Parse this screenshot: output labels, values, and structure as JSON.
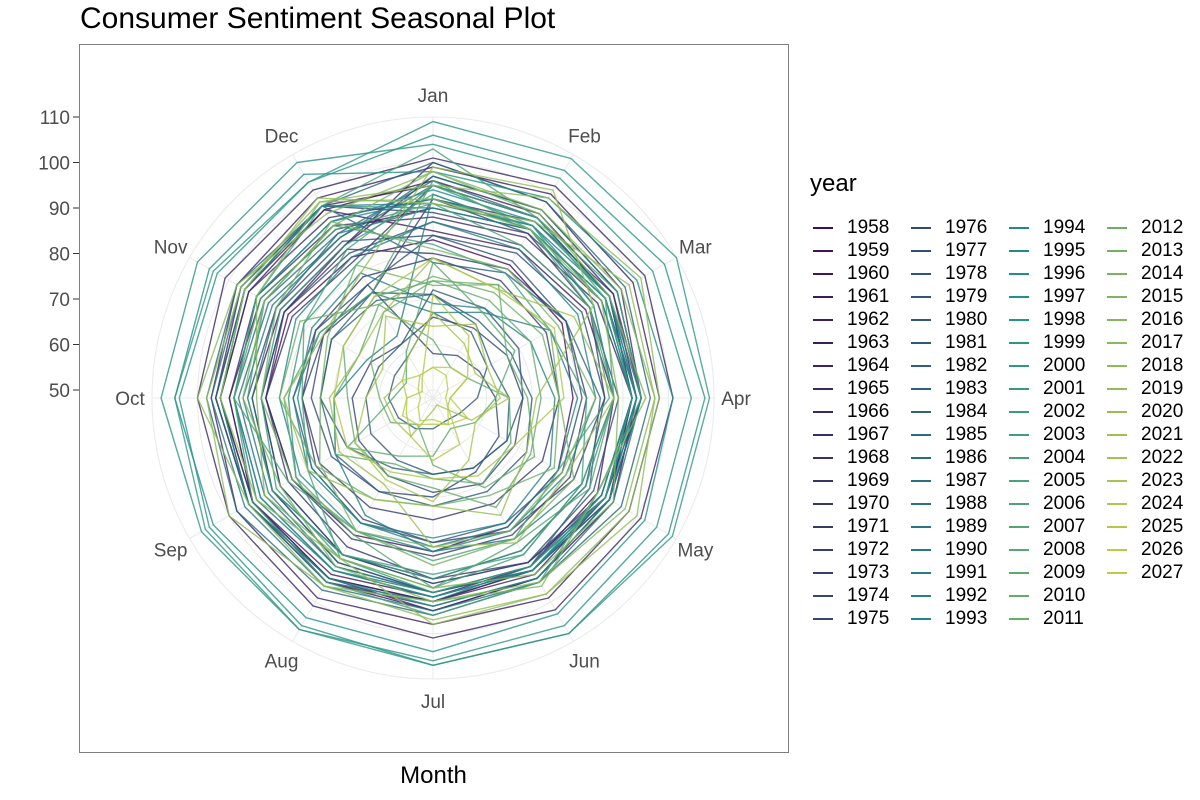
{
  "chart_data": {
    "type": "line",
    "projection": "polar",
    "title": "Consumer Sentiment Seasonal Plot",
    "xlabel": "Month",
    "ylabel": "",
    "categories": [
      "Jan",
      "Feb",
      "Mar",
      "Apr",
      "May",
      "Jun",
      "Jul",
      "Aug",
      "Sep",
      "Oct",
      "Nov",
      "Dec"
    ],
    "radial_ticks": [
      50,
      60,
      70,
      80,
      90,
      100,
      110
    ],
    "ylim": [
      45,
      115
    ],
    "grid": true,
    "legend": {
      "title": "year",
      "position": "right",
      "columns": 4
    },
    "colors": {
      "palette_start": "#440154",
      "palette_mid": "#21918c",
      "palette_end": "#fde725",
      "grid": "#ebebeb",
      "panel_border": "#7f7f7f",
      "tick_text": "#4d4d4d"
    },
    "series": [
      {
        "name": "1958",
        "values": [
          83,
          82,
          81,
          79,
          80,
          81,
          82,
          83,
          84,
          85,
          85,
          84
        ]
      },
      {
        "name": "1959",
        "values": [
          90,
          91,
          92,
          93,
          94,
          94,
          95,
          95,
          94,
          93,
          92,
          91
        ]
      },
      {
        "name": "1960",
        "values": [
          97,
          96,
          95,
          94,
          93,
          92,
          91,
          90,
          89,
          88,
          87,
          87
        ]
      },
      {
        "name": "1961",
        "values": [
          85,
          86,
          87,
          88,
          90,
          91,
          92,
          93,
          94,
          95,
          95,
          96
        ]
      },
      {
        "name": "1962",
        "values": [
          96,
          95,
          94,
          93,
          92,
          92,
          93,
          94,
          95,
          95,
          96,
          96
        ]
      },
      {
        "name": "1963",
        "values": [
          95,
          94,
          93,
          92,
          92,
          93,
          93,
          94,
          95,
          96,
          97,
          97
        ]
      },
      {
        "name": "1964",
        "values": [
          99,
          100,
          99,
          98,
          98,
          99,
          98,
          99,
          98,
          97,
          98,
          99
        ]
      },
      {
        "name": "1965",
        "values": [
          101,
          102,
          102,
          101,
          101,
          102,
          101,
          101,
          100,
          100,
          101,
          101
        ]
      },
      {
        "name": "1966",
        "values": [
          100,
          98,
          96,
          94,
          92,
          90,
          89,
          88,
          87,
          86,
          86,
          87
        ]
      },
      {
        "name": "1967",
        "values": [
          88,
          89,
          90,
          92,
          93,
          94,
          95,
          94,
          94,
          93,
          93,
          92
        ]
      },
      {
        "name": "1968",
        "values": [
          92,
          93,
          94,
          94,
          93,
          92,
          93,
          94,
          94,
          95,
          95,
          94
        ]
      },
      {
        "name": "1969",
        "values": [
          95,
          94,
          93,
          92,
          91,
          90,
          88,
          86,
          85,
          85,
          84,
          83
        ]
      },
      {
        "name": "1970",
        "values": [
          79,
          78,
          77,
          76,
          76,
          75,
          75,
          76,
          77,
          77,
          78,
          79
        ]
      },
      {
        "name": "1971",
        "values": [
          80,
          81,
          82,
          82,
          83,
          83,
          83,
          84,
          84,
          85,
          86,
          86
        ]
      },
      {
        "name": "1972",
        "values": [
          89,
          90,
          91,
          92,
          93,
          94,
          94,
          95,
          95,
          96,
          96,
          97
        ]
      },
      {
        "name": "1973",
        "values": [
          92,
          90,
          88,
          86,
          84,
          82,
          80,
          79,
          78,
          77,
          76,
          75
        ]
      },
      {
        "name": "1974",
        "values": [
          66,
          66,
          67,
          68,
          69,
          70,
          69,
          68,
          67,
          66,
          64,
          62
        ]
      },
      {
        "name": "1975",
        "values": [
          58,
          59,
          60,
          62,
          65,
          67,
          70,
          72,
          74,
          75,
          76,
          77
        ]
      },
      {
        "name": "1976",
        "values": [
          84,
          85,
          86,
          86,
          87,
          87,
          88,
          88,
          89,
          89,
          88,
          88
        ]
      },
      {
        "name": "1977",
        "values": [
          87,
          87,
          88,
          89,
          89,
          90,
          89,
          88,
          87,
          86,
          86,
          85
        ]
      },
      {
        "name": "1978",
        "values": [
          84,
          83,
          82,
          81,
          81,
          80,
          80,
          80,
          79,
          79,
          78,
          77
        ]
      },
      {
        "name": "1979",
        "values": [
          72,
          71,
          70,
          68,
          67,
          66,
          65,
          64,
          64,
          63,
          62,
          62
        ]
      },
      {
        "name": "1980",
        "values": [
          67,
          65,
          62,
          58,
          55,
          54,
          55,
          56,
          57,
          58,
          58,
          59
        ]
      },
      {
        "name": "1981",
        "values": [
          71,
          68,
          68,
          70,
          72,
          72,
          72,
          72,
          73,
          73,
          74,
          73
        ]
      },
      {
        "name": "1982",
        "values": [
          71,
          67,
          63,
          65,
          67,
          66,
          65,
          66,
          70,
          73,
          74,
          75
        ]
      },
      {
        "name": "1983",
        "values": [
          78,
          80,
          82,
          85,
          88,
          91,
          93,
          95,
          95,
          96,
          96,
          97
        ]
      },
      {
        "name": "1984",
        "values": [
          100,
          98,
          97,
          96,
          96,
          95,
          96,
          97,
          98,
          98,
          98,
          97
        ]
      },
      {
        "name": "1985",
        "values": [
          96,
          94,
          93,
          92,
          91,
          91,
          91,
          90,
          89,
          88,
          88,
          90
        ]
      },
      {
        "name": "1986",
        "values": [
          95,
          94,
          93,
          93,
          92,
          92,
          91,
          91,
          91,
          91,
          90,
          89
        ]
      },
      {
        "name": "1987",
        "values": [
          90,
          91,
          92,
          92,
          92,
          91,
          91,
          92,
          93,
          92,
          91,
          90
        ]
      },
      {
        "name": "1988",
        "values": [
          91,
          92,
          93,
          94,
          94,
          95,
          95,
          96,
          96,
          97,
          97,
          97
        ]
      },
      {
        "name": "1989",
        "values": [
          97,
          96,
          95,
          94,
          93,
          92,
          91,
          91,
          90,
          90,
          89,
          89
        ]
      },
      {
        "name": "1990",
        "values": [
          93,
          91,
          89,
          88,
          86,
          84,
          82,
          78,
          73,
          70,
          65,
          64
        ]
      },
      {
        "name": "1991",
        "values": [
          67,
          70,
          78,
          80,
          80,
          81,
          81,
          80,
          80,
          79,
          77,
          75
        ]
      },
      {
        "name": "1992",
        "values": [
          69,
          71,
          73,
          75,
          78,
          80,
          79,
          80,
          79,
          78,
          79,
          80
        ]
      },
      {
        "name": "1993",
        "values": [
          87,
          86,
          85,
          84,
          82,
          82,
          82,
          82,
          82,
          82,
          83,
          84
        ]
      },
      {
        "name": "1994",
        "values": [
          92,
          92,
          91,
          92,
          91,
          92,
          92,
          92,
          92,
          92,
          93,
          93
        ]
      },
      {
        "name": "1995",
        "values": [
          94,
          93,
          93,
          93,
          92,
          92,
          92,
          92,
          92,
          92,
          93,
          93
        ]
      },
      {
        "name": "1996",
        "values": [
          90,
          91,
          92,
          93,
          93,
          94,
          94,
          94,
          95,
          95,
          96,
          97
        ]
      },
      {
        "name": "1997",
        "values": [
          98,
          99,
          100,
          101,
          102,
          103,
          104,
          104,
          104,
          105,
          105,
          105
        ]
      },
      {
        "name": "1998",
        "values": [
          106,
          106,
          107,
          108,
          108,
          108,
          107,
          106,
          105,
          104,
          103,
          103
        ]
      },
      {
        "name": "1999",
        "values": [
          104,
          104,
          104,
          105,
          105,
          106,
          106,
          107,
          107,
          108,
          108,
          108
        ]
      },
      {
        "name": "2000",
        "values": [
          109,
          109,
          110,
          109,
          109,
          108,
          107,
          107,
          106,
          105,
          104,
          103
        ]
      },
      {
        "name": "2001",
        "values": [
          95,
          92,
          89,
          88,
          87,
          87,
          88,
          88,
          83,
          80,
          81,
          82
        ]
      },
      {
        "name": "2002",
        "values": [
          93,
          91,
          92,
          92,
          92,
          91,
          91,
          89,
          88,
          86,
          87,
          87
        ]
      },
      {
        "name": "2003",
        "values": [
          82,
          80,
          78,
          82,
          86,
          88,
          87,
          88,
          89,
          89,
          91,
          92
        ]
      },
      {
        "name": "2004",
        "values": [
          103,
          94,
          95,
          94,
          90,
          95,
          96,
          95,
          94,
          92,
          93,
          97
        ]
      },
      {
        "name": "2005",
        "values": [
          95,
          94,
          92,
          88,
          86,
          88,
          90,
          89,
          80,
          77,
          81,
          86
        ]
      },
      {
        "name": "2006",
        "values": [
          91,
          87,
          88,
          87,
          80,
          84,
          84,
          82,
          85,
          92,
          92,
          91
        ]
      },
      {
        "name": "2007",
        "values": [
          96,
          91,
          88,
          88,
          88,
          85,
          90,
          83,
          83,
          81,
          77,
          75
        ]
      },
      {
        "name": "2008",
        "values": [
          78,
          70,
          69,
          62,
          59,
          56,
          61,
          63,
          70,
          57,
          55,
          60
        ]
      },
      {
        "name": "2009",
        "values": [
          61,
          56,
          57,
          65,
          68,
          70,
          66,
          65,
          73,
          70,
          67,
          72
        ]
      },
      {
        "name": "2010",
        "values": [
          74,
          73,
          73,
          72,
          73,
          76,
          68,
          68,
          68,
          67,
          71,
          74
        ]
      },
      {
        "name": "2011",
        "values": [
          74,
          77,
          67,
          69,
          74,
          71,
          63,
          55,
          59,
          60,
          64,
          70
        ]
      },
      {
        "name": "2012",
        "values": [
          75,
          75,
          76,
          76,
          79,
          73,
          72,
          74,
          78,
          82,
          82,
          72
        ]
      },
      {
        "name": "2013",
        "values": [
          73,
          77,
          78,
          76,
          84,
          84,
          85,
          82,
          77,
          73,
          75,
          82
        ]
      },
      {
        "name": "2014",
        "values": [
          81,
          81,
          80,
          84,
          81,
          82,
          81,
          82,
          84,
          86,
          88,
          93
        ]
      },
      {
        "name": "2015",
        "values": [
          98,
          95,
          93,
          95,
          90,
          96,
          93,
          91,
          87,
          90,
          91,
          92
        ]
      },
      {
        "name": "2016",
        "values": [
          92,
          91,
          91,
          89,
          94,
          93,
          90,
          89,
          91,
          87,
          93,
          98
        ]
      },
      {
        "name": "2017",
        "values": [
          98,
          96,
          96,
          97,
          97,
          95,
          93,
          96,
          95,
          100,
          98,
          95
        ]
      },
      {
        "name": "2018",
        "values": [
          95,
          99,
          101,
          98,
          98,
          98,
          97,
          96,
          100,
          98,
          97,
          98
        ]
      },
      {
        "name": "2019",
        "values": [
          91,
          93,
          98,
          97,
          100,
          98,
          98,
          89,
          93,
          95,
          96,
          99
        ]
      },
      {
        "name": "2020",
        "values": [
          99,
          101,
          89,
          71,
          72,
          78,
          72,
          74,
          80,
          81,
          76,
          80
        ]
      },
      {
        "name": "2021",
        "values": [
          79,
          76,
          84,
          88,
          82,
          85,
          81,
          70,
          72,
          71,
          67,
          70
        ]
      },
      {
        "name": "2022",
        "values": [
          67,
          62,
          59,
          65,
          58,
          50,
          51,
          58,
          58,
          59,
          56,
          59
        ]
      },
      {
        "name": "2023",
        "values": [
          64,
          67,
          62,
          63,
          59,
          64,
          71,
          69,
          68,
          63,
          61,
          69
        ]
      },
      {
        "name": "2024",
        "values": [
          79,
          76,
          79,
          77,
          69,
          68,
          66,
          67,
          70,
          70,
          71,
          74
        ]
      },
      {
        "name": "2025",
        "values": [
          71,
          64,
          57,
          52,
          52,
          60,
          62,
          58,
          55,
          54,
          51,
          53
        ]
      },
      {
        "name": "2026",
        "values": [
          55,
          56,
          57,
          52,
          57,
          55,
          54,
          55,
          56,
          54,
          56,
          54
        ]
      },
      {
        "name": "2027",
        "values": [
          55,
          54,
          52,
          51,
          52,
          55,
          53,
          54,
          52,
          51,
          52,
          54
        ]
      }
    ]
  }
}
